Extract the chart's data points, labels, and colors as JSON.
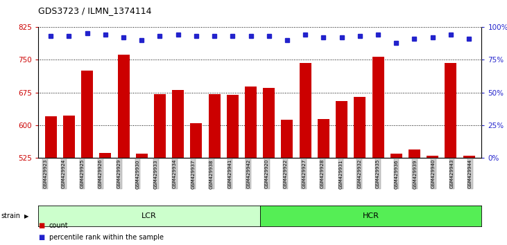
{
  "title": "GDS3723 / ILMN_1374114",
  "categories": [
    "GSM429923",
    "GSM429924",
    "GSM429925",
    "GSM429926",
    "GSM429929",
    "GSM429930",
    "GSM429933",
    "GSM429934",
    "GSM429937",
    "GSM429938",
    "GSM429941",
    "GSM429942",
    "GSM429920",
    "GSM429922",
    "GSM429927",
    "GSM429928",
    "GSM429931",
    "GSM429932",
    "GSM429935",
    "GSM429936",
    "GSM429939",
    "GSM429940",
    "GSM429943",
    "GSM429944"
  ],
  "bar_values": [
    620,
    622,
    725,
    537,
    762,
    535,
    672,
    680,
    605,
    672,
    670,
    688,
    685,
    612,
    743,
    615,
    655,
    665,
    757,
    535,
    545,
    530,
    742,
    530
  ],
  "percentile_values": [
    93,
    93,
    95,
    94,
    92,
    90,
    93,
    94,
    93,
    93,
    93,
    93,
    93,
    90,
    94,
    92,
    92,
    93,
    94,
    88,
    91,
    92,
    94,
    91
  ],
  "ylim_left": [
    525,
    825
  ],
  "ylim_right": [
    0,
    100
  ],
  "yticks_left": [
    525,
    600,
    675,
    750,
    825
  ],
  "yticks_right": [
    0,
    25,
    50,
    75,
    100
  ],
  "bar_color": "#cc0000",
  "dot_color": "#2222cc",
  "lcr_color": "#ccffcc",
  "hcr_color": "#55ee55",
  "lcr_label": "LCR",
  "hcr_label": "HCR",
  "n_lcr": 12,
  "n_hcr": 12,
  "strain_label": "strain",
  "tick_label_bg": "#cccccc",
  "legend_count": "count",
  "legend_percentile": "percentile rank within the sample"
}
